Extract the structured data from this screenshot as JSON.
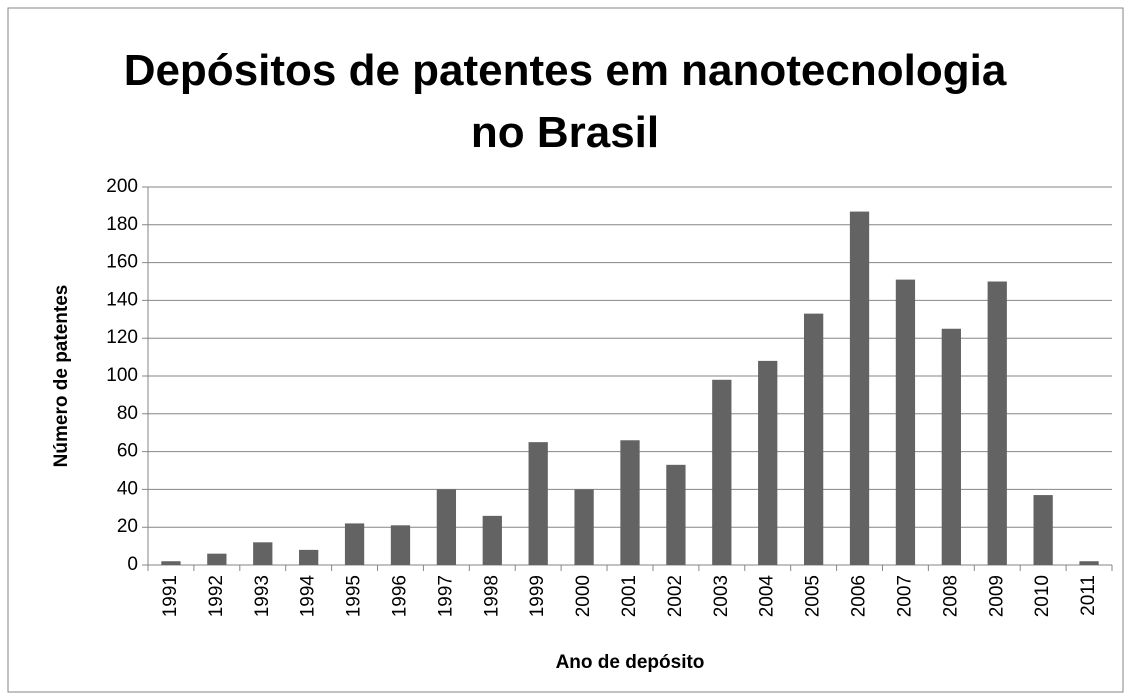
{
  "chart_data": {
    "type": "bar",
    "title": "Depósitos de patentes em nanotecnologia no Brasil",
    "x_label": "Ano de depósito",
    "y_label": "Número de patentes",
    "categories": [
      "1991",
      "1992",
      "1993",
      "1994",
      "1995",
      "1996",
      "1997",
      "1998",
      "1999",
      "2000",
      "2001",
      "2002",
      "2003",
      "2004",
      "2005",
      "2006",
      "2007",
      "2008",
      "2009",
      "2010",
      "2011"
    ],
    "values": [
      2,
      6,
      12,
      8,
      22,
      21,
      40,
      26,
      65,
      40,
      66,
      53,
      98,
      108,
      133,
      187,
      151,
      125,
      150,
      37,
      2
    ],
    "color": "#636363",
    "ylim": [
      0,
      200
    ],
    "yticks": [
      0,
      20,
      40,
      60,
      80,
      100,
      120,
      140,
      160,
      180,
      200
    ],
    "grid": true
  }
}
